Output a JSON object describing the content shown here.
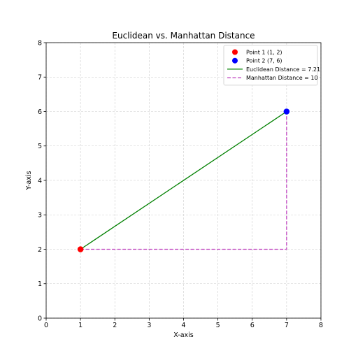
{
  "chart_data": {
    "type": "scatter",
    "title": "Euclidean vs. Manhattan Distance",
    "xlabel": "X-axis",
    "ylabel": "Y-axis",
    "xlim": [
      0,
      8
    ],
    "ylim": [
      0,
      8
    ],
    "xticks": [
      0,
      1,
      2,
      3,
      4,
      5,
      6,
      7,
      8
    ],
    "yticks": [
      0,
      1,
      2,
      3,
      4,
      5,
      6,
      7,
      8
    ],
    "grid": true,
    "legend_position": "top-right",
    "points": [
      {
        "label": "Point 1 (1, 2)",
        "x": 1,
        "y": 2,
        "color": "#ff0000"
      },
      {
        "label": "Point 2 (7, 6)",
        "x": 7,
        "y": 6,
        "color": "#0000ff"
      }
    ],
    "lines": [
      {
        "label": "Euclidean Distance = 7.21",
        "style": "solid",
        "color": "#008000",
        "x": [
          1,
          7
        ],
        "y": [
          2,
          6
        ]
      },
      {
        "label": "Manhattan Distance = 10",
        "style": "dashed",
        "color": "#bf40bf",
        "x": [
          1,
          7,
          7
        ],
        "y": [
          2,
          2,
          6
        ]
      }
    ]
  }
}
